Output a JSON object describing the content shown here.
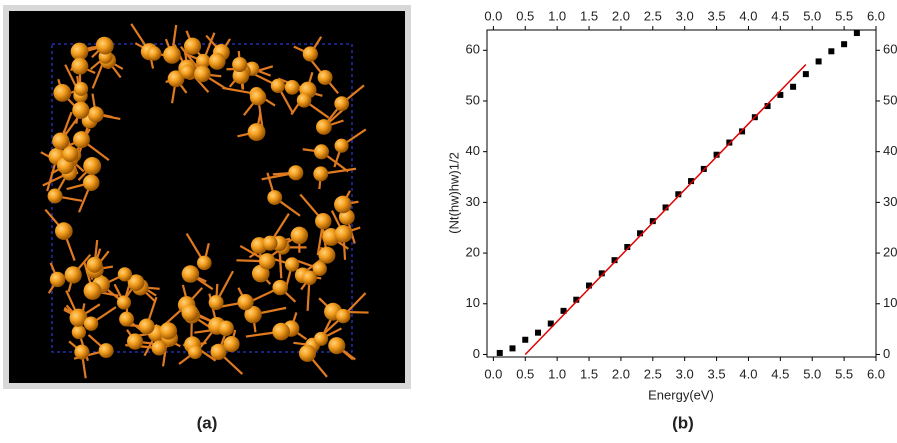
{
  "panel_labels": [
    "(a)",
    "(b)"
  ],
  "chart_data": {
    "type": "scatter",
    "xlabel": "Energy(eV)",
    "ylabel": "(Nt(hw)hw)1/2",
    "xlim": [
      -0.1,
      6.0
    ],
    "xticks": [
      {
        "value": 0,
        "label": "0.0"
      },
      {
        "value": 0.5,
        "label": "0.5"
      },
      {
        "value": 1,
        "label": "1.0"
      },
      {
        "value": 1.5,
        "label": "1.5"
      },
      {
        "value": 2,
        "label": "2.0"
      },
      {
        "value": 2.5,
        "label": "2.5"
      },
      {
        "value": 3,
        "label": "3.0"
      },
      {
        "value": 3.5,
        "label": "3.5"
      },
      {
        "value": 4,
        "label": "4.0"
      },
      {
        "value": 4.5,
        "label": "4.5"
      },
      {
        "value": 5,
        "label": "5.0"
      },
      {
        "value": 5.5,
        "label": "5.5"
      },
      {
        "value": 6,
        "label": "6.0"
      }
    ],
    "x2lim": [
      -0.1,
      6.0
    ],
    "x2ticks": [
      {
        "value": 0,
        "label": "0.0"
      },
      {
        "value": 0.5,
        "label": "0.5"
      },
      {
        "value": 1,
        "label": "1.0"
      },
      {
        "value": 1.5,
        "label": "1.5"
      },
      {
        "value": 2,
        "label": "2.0"
      },
      {
        "value": 2.5,
        "label": "2.5"
      },
      {
        "value": 3,
        "label": "3.0"
      },
      {
        "value": 3.5,
        "label": "3.5"
      },
      {
        "value": 4,
        "label": "4.0"
      },
      {
        "value": 4.5,
        "label": "4.5"
      },
      {
        "value": 5,
        "label": "5.0"
      },
      {
        "value": 5.5,
        "label": "5.5"
      },
      {
        "value": 6,
        "label": "6.0"
      }
    ],
    "ylim": [
      -0.5,
      64
    ],
    "yticks": [
      0,
      10,
      20,
      30,
      40,
      50,
      60
    ],
    "y2lim": [
      -0.5,
      64
    ],
    "y2ticks": [
      0,
      10,
      20,
      30,
      40,
      50,
      60
    ],
    "series": [
      {
        "color": "#000000",
        "marker": "square",
        "x": [
          0.1,
          0.3,
          0.5,
          0.7,
          0.9,
          1.1,
          1.3,
          1.5,
          1.7,
          1.9,
          2.1,
          2.3,
          2.5,
          2.7,
          2.9,
          3.1,
          3.3,
          3.5,
          3.7,
          3.9,
          4.1,
          4.3,
          4.5,
          4.7,
          4.9,
          5.1,
          5.3,
          5.5,
          5.7
        ],
        "values": [
          0.3,
          1.2,
          2.9,
          4.3,
          6.1,
          8.6,
          10.8,
          13.6,
          16.0,
          18.6,
          21.2,
          23.9,
          26.3,
          29.0,
          31.6,
          34.2,
          36.6,
          39.4,
          41.8,
          44.0,
          46.8,
          49.0,
          51.2,
          52.8,
          55.3,
          57.8,
          59.8,
          61.2,
          63.4
        ]
      },
      {
        "color": "#e00000",
        "marker": "line",
        "x": [
          0.5,
          4.9
        ],
        "values": [
          0,
          57.2
        ]
      }
    ]
  }
}
